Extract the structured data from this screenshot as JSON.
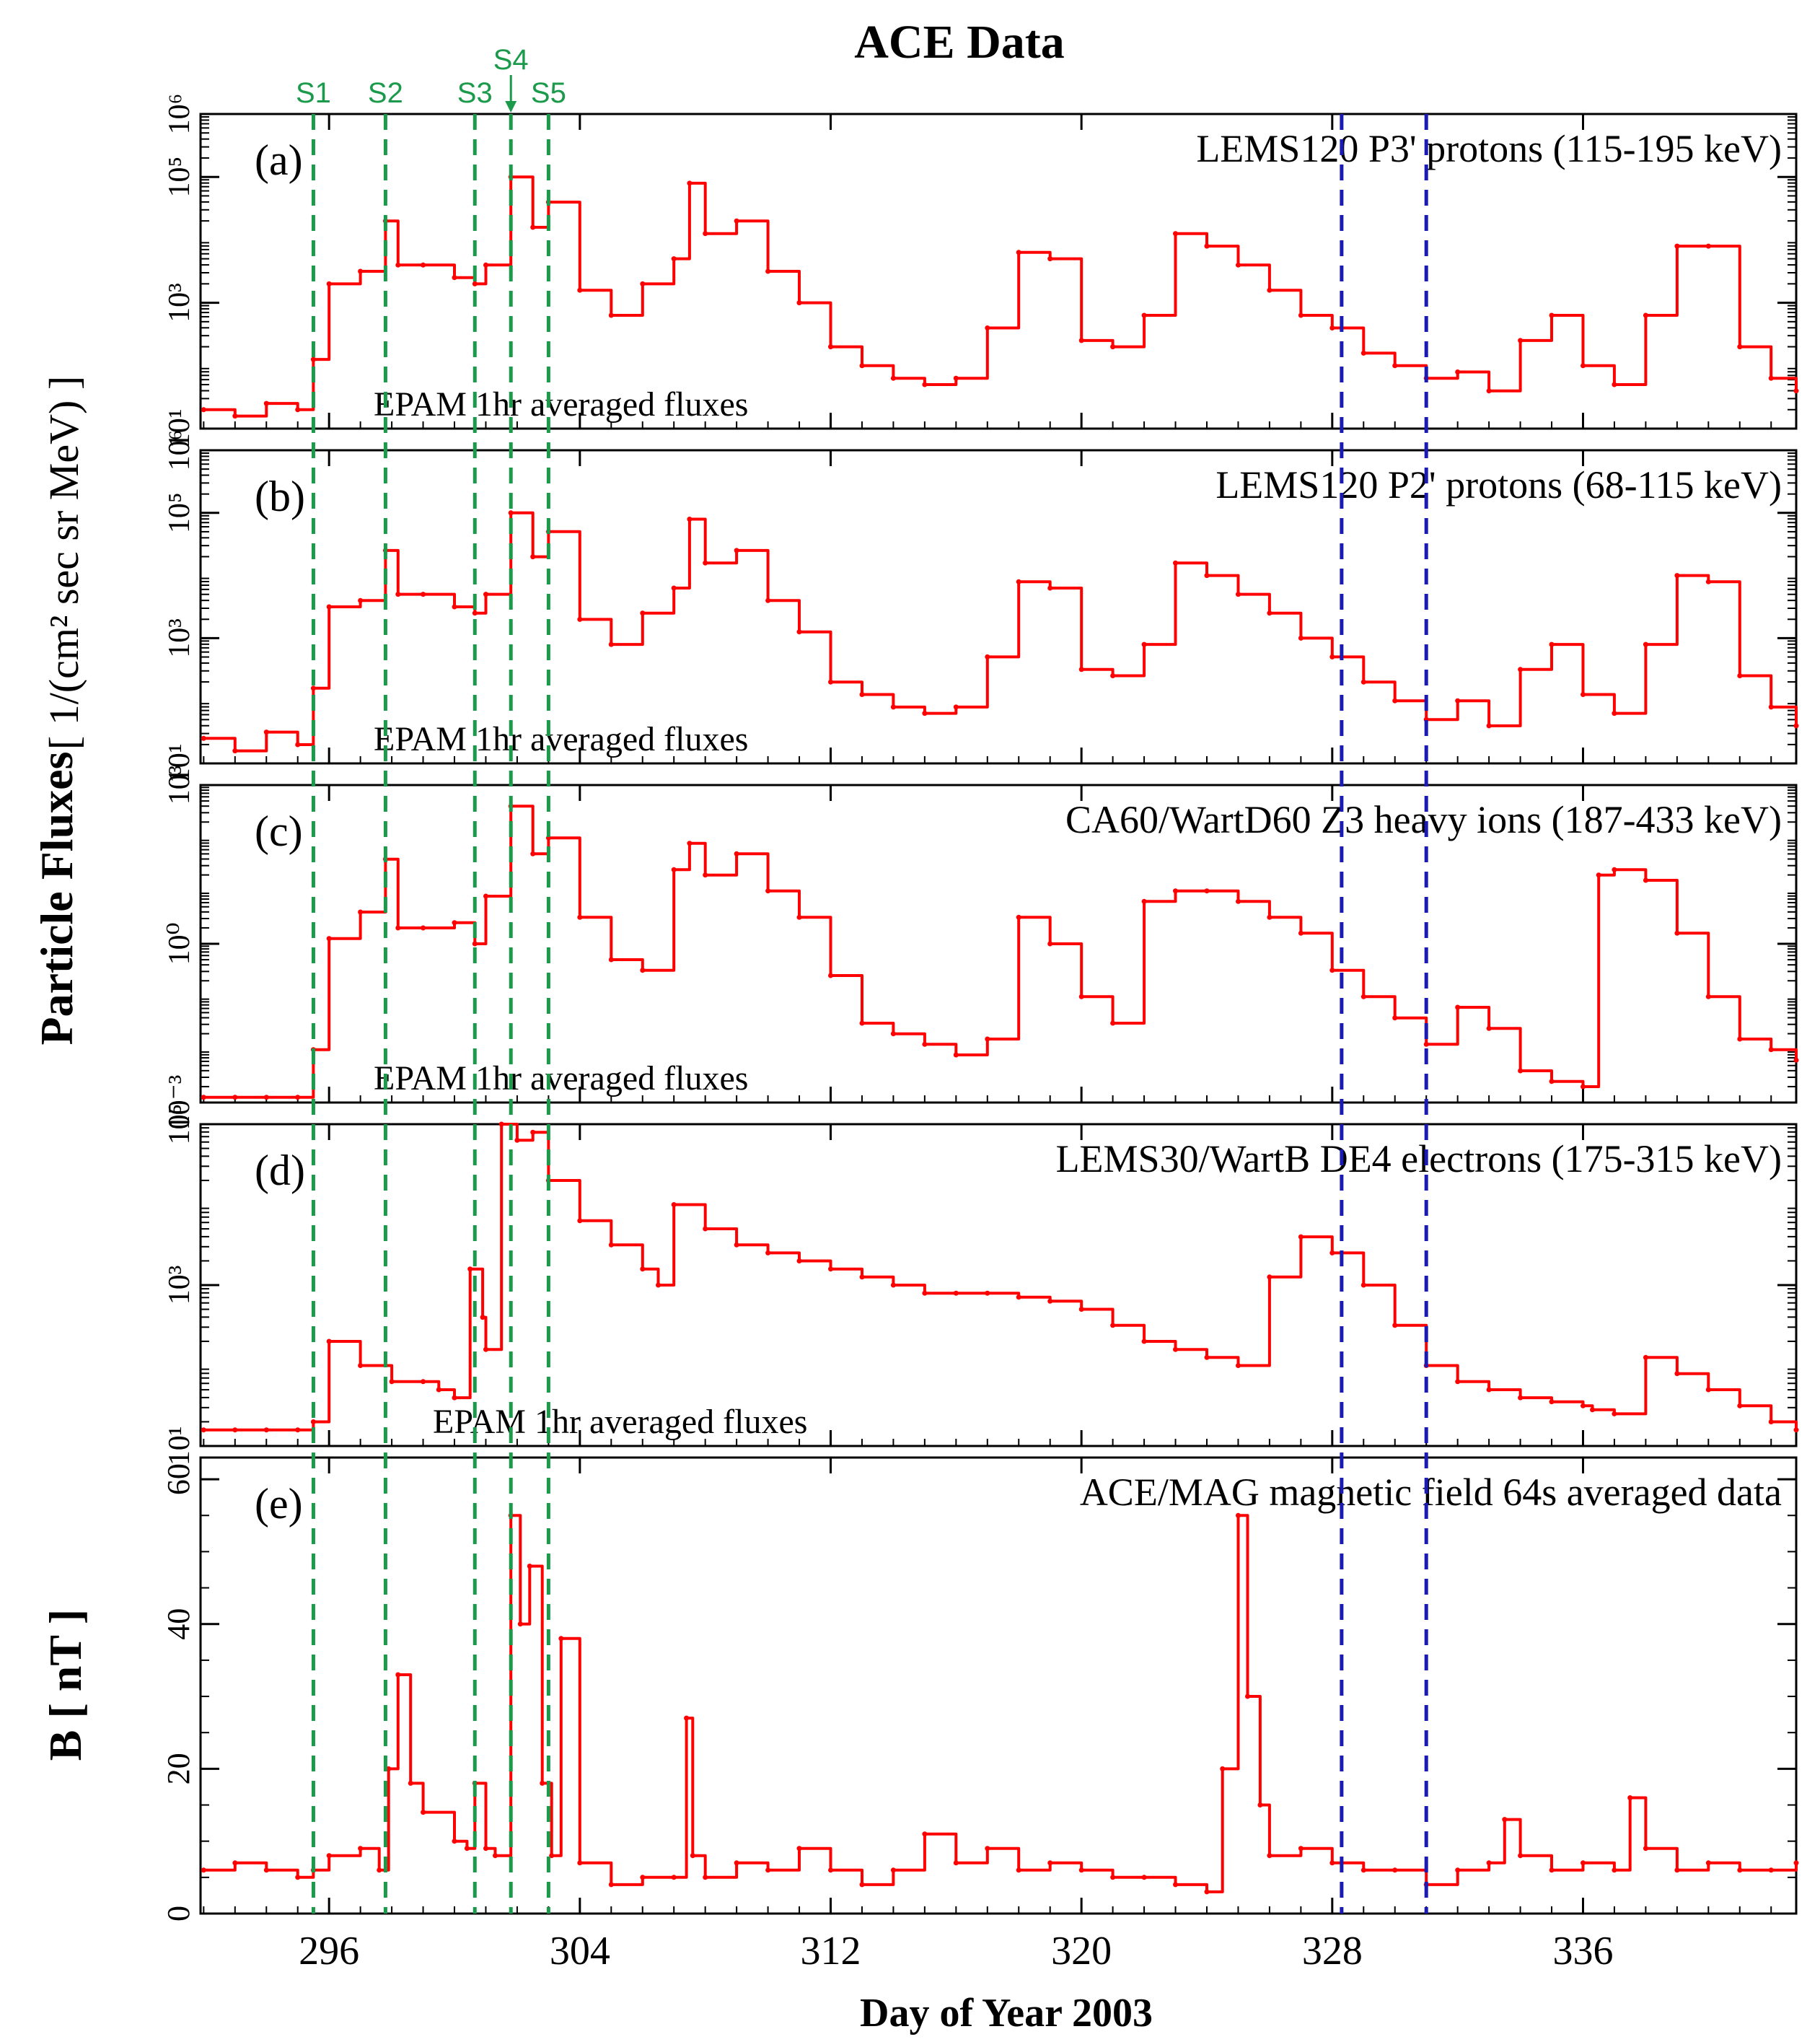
{
  "title": "ACE Data",
  "xlabel": "Day of Year 2003",
  "ylabel_flux": "Particle Fluxes",
  "ylabel_flux_units": "[ 1/(cm² sec sr MeV) ]",
  "ylabel_b": "B [ nT ]",
  "colors": {
    "data": "#ff0000",
    "shock": "#1a9a4a",
    "interval": "#1a1ab4",
    "axis": "#000000"
  },
  "shocks": [
    {
      "label": "S1",
      "day": 295.5
    },
    {
      "label": "S2",
      "day": 297.8
    },
    {
      "label": "S3",
      "day": 300.65
    },
    {
      "label": "S4",
      "day": 301.8
    },
    {
      "label": "S5",
      "day": 303.0
    }
  ],
  "intervals": [
    {
      "day": 328.3
    },
    {
      "day": 331.0
    }
  ],
  "chart_data": {
    "type": "line",
    "xlim": [
      291.9,
      342.8
    ],
    "xticks": [
      296,
      304,
      312,
      320,
      328,
      336
    ],
    "panels": [
      {
        "id": "a",
        "label": "(a)",
        "title": "LEMS120 P3' protons (115-195 keV)",
        "note": "EPAM 1hr averaged fluxes",
        "yscale": "log",
        "ylim_exp": [
          1,
          6
        ],
        "yticks": [
          {
            "exp": 1,
            "text": "10¹"
          },
          {
            "exp": 3,
            "text": "10³"
          },
          {
            "exp": 5,
            "text": "10⁵"
          },
          {
            "exp": 6,
            "text": "10⁶"
          }
        ],
        "x": [
          292,
          293,
          294,
          295,
          295.5,
          296,
          297,
          297.8,
          298.2,
          299,
          300,
          300.65,
          301,
          301.8,
          302.5,
          303,
          304,
          305,
          306,
          307,
          307.5,
          308,
          309,
          310,
          311,
          312,
          313,
          314,
          315,
          316,
          317,
          318,
          319,
          320,
          321,
          322,
          323,
          324,
          325,
          326,
          327,
          328,
          329,
          330,
          331,
          332,
          333,
          334,
          335,
          336,
          337,
          338,
          339,
          340,
          341,
          342,
          342.8
        ],
        "y_exp": [
          1.3,
          1.2,
          1.4,
          1.3,
          2.1,
          3.3,
          3.5,
          4.3,
          3.6,
          3.6,
          3.4,
          3.3,
          3.6,
          5.0,
          4.2,
          4.6,
          3.2,
          2.8,
          3.3,
          3.7,
          4.9,
          4.1,
          4.3,
          3.5,
          3.0,
          2.3,
          2.0,
          1.8,
          1.7,
          1.8,
          2.6,
          3.8,
          3.7,
          2.4,
          2.3,
          2.8,
          4.1,
          3.9,
          3.6,
          3.2,
          2.8,
          2.6,
          2.2,
          2.0,
          1.8,
          1.9,
          1.6,
          2.4,
          2.8,
          2.0,
          1.7,
          2.8,
          3.9,
          3.9,
          2.3,
          1.8,
          1.6
        ]
      },
      {
        "id": "b",
        "label": "(b)",
        "title": "LEMS120 P2' protons (68-115 keV)",
        "note": "EPAM 1hr averaged fluxes",
        "yscale": "log",
        "ylim_exp": [
          1,
          6
        ],
        "yticks": [
          {
            "exp": 1,
            "text": "10¹"
          },
          {
            "exp": 3,
            "text": "10³"
          },
          {
            "exp": 5,
            "text": "10⁵"
          },
          {
            "exp": 6,
            "text": "10⁶"
          }
        ],
        "x": [
          292,
          293,
          294,
          295,
          295.5,
          296,
          297,
          297.8,
          298.2,
          299,
          300,
          300.65,
          301,
          301.8,
          302.5,
          303,
          304,
          305,
          306,
          307,
          307.5,
          308,
          309,
          310,
          311,
          312,
          313,
          314,
          315,
          316,
          317,
          318,
          319,
          320,
          321,
          322,
          323,
          324,
          325,
          326,
          327,
          328,
          329,
          330,
          331,
          332,
          333,
          334,
          335,
          336,
          337,
          338,
          339,
          340,
          341,
          342,
          342.8
        ],
        "y_exp": [
          1.4,
          1.2,
          1.5,
          1.3,
          2.2,
          3.5,
          3.6,
          4.4,
          3.7,
          3.7,
          3.5,
          3.4,
          3.7,
          5.0,
          4.3,
          4.7,
          3.3,
          2.9,
          3.4,
          3.8,
          4.9,
          4.2,
          4.4,
          3.6,
          3.1,
          2.3,
          2.1,
          1.9,
          1.8,
          1.9,
          2.7,
          3.9,
          3.8,
          2.5,
          2.4,
          2.9,
          4.2,
          4.0,
          3.7,
          3.4,
          3.0,
          2.7,
          2.3,
          2.0,
          1.7,
          2.0,
          1.6,
          2.5,
          2.9,
          2.1,
          1.8,
          2.9,
          4.0,
          3.9,
          2.4,
          1.9,
          1.6
        ]
      },
      {
        "id": "c",
        "label": "(c)",
        "title": "CA60/WartD60 Z3 heavy ions (187-433 keV)",
        "note": "EPAM 1hr averaged fluxes",
        "yscale": "log",
        "ylim_exp": [
          -3,
          3
        ],
        "yticks": [
          {
            "exp": -3,
            "text": "10⁻³"
          },
          {
            "exp": 0,
            "text": "10⁰"
          },
          {
            "exp": 3,
            "text": "10³"
          }
        ],
        "x": [
          292,
          293,
          294,
          295,
          295.5,
          296,
          297,
          297.8,
          298.2,
          299,
          300,
          300.65,
          301,
          301.8,
          302.5,
          303,
          304,
          305,
          306,
          307,
          307.5,
          308,
          309,
          310,
          311,
          312,
          313,
          314,
          315,
          316,
          317,
          318,
          319,
          320,
          321,
          322,
          323,
          324,
          325,
          326,
          327,
          328,
          329,
          330,
          331,
          332,
          333,
          334,
          335,
          336,
          336.5,
          337,
          338,
          339,
          340,
          341,
          342,
          342.8
        ],
        "y_exp": [
          -2.9,
          -2.9,
          -2.9,
          -2.9,
          -2.0,
          0.1,
          0.6,
          1.6,
          0.3,
          0.3,
          0.4,
          0.0,
          0.9,
          2.6,
          1.7,
          2.0,
          0.5,
          -0.3,
          -0.5,
          1.4,
          1.9,
          1.3,
          1.7,
          1.0,
          0.5,
          -0.6,
          -1.5,
          -1.7,
          -1.9,
          -2.1,
          -1.8,
          0.5,
          0.0,
          -1.0,
          -1.5,
          0.8,
          1.0,
          1.0,
          0.8,
          0.5,
          0.2,
          -0.5,
          -1.0,
          -1.4,
          -1.9,
          -1.2,
          -1.6,
          -2.4,
          -2.6,
          -2.7,
          1.3,
          1.4,
          1.2,
          0.2,
          -1.0,
          -1.8,
          -2.0,
          -2.2
        ]
      },
      {
        "id": "d",
        "label": "(d)",
        "title": "LEMS30/WartB DE4 electrons (175-315 keV)",
        "note": "EPAM 1hr averaged fluxes",
        "yscale": "log",
        "ylim_exp": [
          1,
          5
        ],
        "yticks": [
          {
            "exp": 1,
            "text": "10¹"
          },
          {
            "exp": 3,
            "text": "10³"
          },
          {
            "exp": 5,
            "text": "10⁵"
          }
        ],
        "x": [
          292,
          293,
          294,
          295,
          295.5,
          296,
          297,
          298,
          299,
          299.5,
          300,
          300.5,
          300.9,
          301,
          301.5,
          302,
          302.5,
          303,
          304,
          305,
          306,
          306.5,
          307,
          308,
          309,
          310,
          311,
          312,
          313,
          314,
          315,
          316,
          317,
          318,
          319,
          320,
          321,
          322,
          323,
          324,
          325,
          326,
          327,
          328,
          329,
          330,
          331,
          332,
          333,
          334,
          335,
          336,
          336.3,
          337,
          338,
          339,
          340,
          341,
          342,
          342.8
        ],
        "y_exp": [
          1.2,
          1.2,
          1.2,
          1.2,
          1.3,
          2.3,
          2.0,
          1.8,
          1.8,
          1.7,
          1.6,
          3.2,
          2.6,
          2.2,
          5.0,
          4.8,
          4.9,
          4.3,
          3.8,
          3.5,
          3.2,
          3.0,
          4.0,
          3.7,
          3.5,
          3.4,
          3.3,
          3.2,
          3.1,
          3.0,
          2.9,
          2.9,
          2.9,
          2.85,
          2.8,
          2.7,
          2.5,
          2.3,
          2.2,
          2.1,
          2.0,
          3.1,
          3.6,
          3.4,
          3.0,
          2.5,
          2.0,
          1.8,
          1.7,
          1.6,
          1.55,
          1.5,
          1.45,
          1.4,
          2.1,
          1.9,
          1.7,
          1.5,
          1.3,
          1.2
        ]
      },
      {
        "id": "e",
        "label": "(e)",
        "title": "ACE/MAG magnetic field 64s averaged data",
        "yscale": "linear",
        "ylim": [
          0,
          63
        ],
        "yticks": [
          {
            "value": 0,
            "text": "0"
          },
          {
            "value": 20,
            "text": "20"
          },
          {
            "value": 40,
            "text": "40"
          },
          {
            "value": 60,
            "text": "60"
          }
        ],
        "x": [
          292,
          293,
          294,
          295,
          295.5,
          296,
          297,
          297.6,
          297.9,
          298.2,
          298.6,
          299,
          300,
          300.4,
          300.65,
          301,
          301.3,
          301.8,
          302.1,
          302.4,
          302.8,
          303.1,
          303.4,
          304,
          305,
          306,
          307,
          307.4,
          307.6,
          308,
          309,
          310,
          311,
          312,
          313,
          314,
          315,
          316,
          317,
          318,
          319,
          320,
          321,
          322,
          323,
          324,
          324.5,
          325,
          325.3,
          325.7,
          326,
          327,
          328,
          329,
          330,
          331,
          332,
          333,
          333.5,
          334,
          335,
          336,
          337,
          337.5,
          338,
          339,
          340,
          341,
          342,
          342.8
        ],
        "y": [
          6,
          7,
          6,
          5,
          6,
          8,
          9,
          6,
          20,
          33,
          18,
          14,
          10,
          9,
          18,
          9,
          8,
          55,
          40,
          48,
          18,
          8,
          38,
          7,
          4,
          5,
          5,
          27,
          8,
          5,
          7,
          6,
          9,
          6,
          4,
          6,
          11,
          7,
          9,
          6,
          7,
          6,
          5,
          5,
          4,
          3,
          20,
          55,
          30,
          15,
          8,
          9,
          7,
          6,
          6,
          4,
          6,
          7,
          13,
          8,
          6,
          7,
          6,
          16,
          9,
          6,
          7,
          6,
          6,
          7
        ]
      }
    ]
  }
}
